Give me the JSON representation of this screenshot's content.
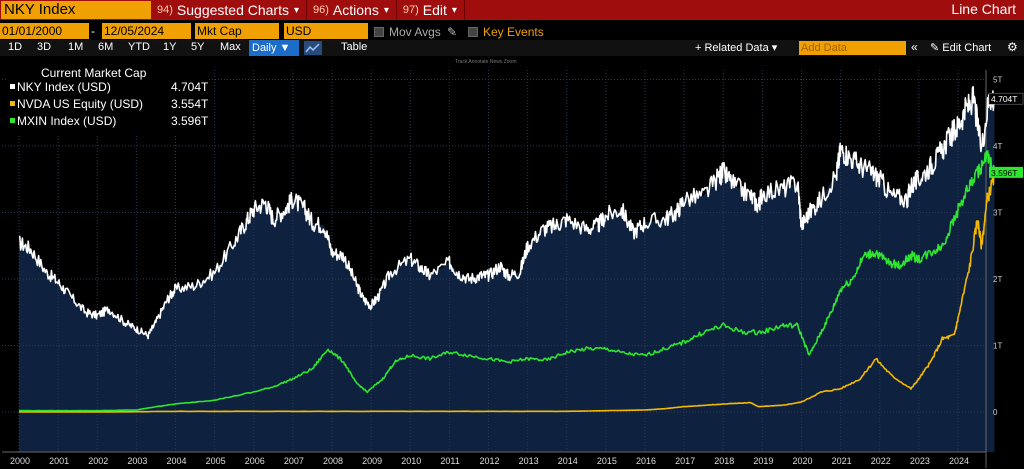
{
  "header": {
    "ticker": "NKY Index",
    "menus": [
      {
        "num": "94)",
        "label": "Suggested Charts"
      },
      {
        "num": "96)",
        "label": "Actions"
      },
      {
        "num": "97)",
        "label": "Edit"
      }
    ],
    "chart_type": "Line Chart"
  },
  "controls": {
    "start_date": "01/01/2000",
    "end_date": "12/05/2024",
    "field": "Mkt Cap",
    "currency": "USD",
    "mov_avgs": "Mov Avgs",
    "key_events": "Key Events",
    "ranges": [
      "1D",
      "3D",
      "1M",
      "6M",
      "YTD",
      "1Y",
      "5Y",
      "Max"
    ],
    "frequency": "Daily",
    "table_label": "Table",
    "related_data": "Related Data",
    "add_data_placeholder": "Add Data",
    "edit_chart": "Edit Chart",
    "annotation_tools": "Track   Annotate   News   Zoom"
  },
  "legend": {
    "title": "Current Market Cap",
    "items": [
      {
        "name": "NKY Index (USD)",
        "value": "4.704T",
        "color": "#ffffff"
      },
      {
        "name": "NVDA US Equity (USD)",
        "value": "3.554T",
        "color": "#f5b800"
      },
      {
        "name": "MXIN Index (USD)",
        "value": "3.596T",
        "color": "#2ee62e"
      }
    ]
  },
  "chart_data": {
    "type": "line",
    "xlabel": "",
    "ylabel": "",
    "x_ticks": [
      "2000",
      "2001",
      "2002",
      "2003",
      "2004",
      "2005",
      "2006",
      "2007",
      "2008",
      "2009",
      "2010",
      "2011",
      "2012",
      "2013",
      "2014",
      "2015",
      "2016",
      "2017",
      "2018",
      "2019",
      "2020",
      "2021",
      "2022",
      "2023",
      "2024"
    ],
    "y_ticks": [
      "0",
      "1T",
      "2T",
      "3T",
      "4T",
      "5T"
    ],
    "ylim": [
      0,
      5.2
    ],
    "grid": true,
    "series": [
      {
        "name": "NKY Index (USD)",
        "color": "#ffffff",
        "fill": true,
        "x": [
          2000.0,
          2000.3,
          2000.7,
          2001.0,
          2001.3,
          2001.7,
          2002.0,
          2002.3,
          2002.7,
          2003.0,
          2003.3,
          2003.5,
          2003.8,
          2004.0,
          2004.5,
          2005.0,
          2005.5,
          2005.8,
          2006.0,
          2006.3,
          2006.5,
          2006.8,
          2007.0,
          2007.3,
          2007.5,
          2007.8,
          2008.0,
          2008.3,
          2008.6,
          2008.8,
          2009.0,
          2009.2,
          2009.5,
          2010.0,
          2010.3,
          2010.5,
          2011.0,
          2011.2,
          2011.5,
          2011.8,
          2012.0,
          2012.3,
          2012.5,
          2012.8,
          2013.0,
          2013.4,
          2013.7,
          2014.0,
          2014.5,
          2014.8,
          2015.0,
          2015.4,
          2015.7,
          2016.0,
          2016.5,
          2016.8,
          2017.0,
          2017.5,
          2017.9,
          2018.0,
          2018.3,
          2018.7,
          2018.9,
          2019.0,
          2019.5,
          2019.9,
          2020.0,
          2020.2,
          2020.5,
          2020.9,
          2021.0,
          2021.2,
          2021.5,
          2021.8,
          2022.0,
          2022.3,
          2022.7,
          2022.8,
          2023.0,
          2023.3,
          2023.5,
          2023.8,
          2024.0,
          2024.2,
          2024.4,
          2024.6,
          2024.8,
          2024.93
        ],
        "y": [
          2.55,
          2.45,
          2.1,
          1.95,
          1.75,
          1.5,
          1.45,
          1.55,
          1.35,
          1.25,
          1.15,
          1.35,
          1.7,
          1.85,
          1.9,
          2.1,
          2.55,
          2.85,
          3.05,
          3.15,
          2.9,
          3.05,
          3.2,
          3.05,
          2.85,
          2.8,
          2.4,
          2.35,
          1.95,
          1.7,
          1.6,
          1.75,
          2.1,
          2.3,
          2.15,
          2.05,
          2.25,
          2.1,
          2.0,
          2.05,
          2.05,
          2.2,
          2.05,
          2.1,
          2.5,
          2.75,
          2.8,
          2.9,
          2.75,
          2.8,
          2.95,
          3.05,
          2.7,
          2.85,
          2.9,
          3.0,
          3.2,
          3.25,
          3.55,
          3.6,
          3.4,
          3.25,
          3.1,
          3.3,
          3.35,
          3.45,
          2.8,
          3.0,
          3.2,
          3.6,
          3.95,
          3.85,
          3.7,
          3.6,
          3.5,
          3.25,
          3.2,
          3.4,
          3.5,
          3.7,
          3.85,
          4.15,
          4.3,
          4.55,
          4.7,
          3.95,
          4.75,
          4.704
        ]
      },
      {
        "name": "NVDA US Equity (USD)",
        "color": "#f5b800",
        "fill": false,
        "x": [
          2000.0,
          2002.0,
          2004.0,
          2006.0,
          2008.0,
          2010.0,
          2012.0,
          2014.0,
          2016.0,
          2016.5,
          2017.0,
          2017.5,
          2018.0,
          2018.7,
          2018.9,
          2019.5,
          2020.0,
          2020.5,
          2021.0,
          2021.5,
          2021.9,
          2022.3,
          2022.8,
          2023.0,
          2023.3,
          2023.6,
          2023.9,
          2024.0,
          2024.3,
          2024.5,
          2024.6,
          2024.75,
          2024.93
        ],
        "y": [
          0.0,
          0.0,
          0.01,
          0.01,
          0.01,
          0.01,
          0.01,
          0.01,
          0.03,
          0.05,
          0.08,
          0.1,
          0.12,
          0.14,
          0.08,
          0.1,
          0.15,
          0.3,
          0.35,
          0.5,
          0.8,
          0.55,
          0.35,
          0.5,
          0.75,
          1.1,
          1.15,
          1.4,
          2.2,
          2.9,
          2.5,
          3.2,
          3.554
        ]
      },
      {
        "name": "MXIN Index (USD)",
        "color": "#2ee62e",
        "fill": false,
        "x": [
          2000.0,
          2001.0,
          2002.0,
          2003.0,
          2003.5,
          2004.0,
          2005.0,
          2006.0,
          2006.5,
          2007.0,
          2007.5,
          2007.9,
          2008.3,
          2008.6,
          2008.9,
          2009.3,
          2009.6,
          2010.0,
          2010.5,
          2011.0,
          2011.5,
          2012.0,
          2012.5,
          2013.0,
          2013.5,
          2014.0,
          2014.5,
          2015.0,
          2015.5,
          2016.0,
          2016.5,
          2017.0,
          2017.5,
          2018.0,
          2018.5,
          2019.0,
          2019.5,
          2019.9,
          2020.2,
          2020.5,
          2020.8,
          2021.0,
          2021.3,
          2021.6,
          2021.9,
          2022.2,
          2022.5,
          2022.8,
          2023.0,
          2023.3,
          2023.6,
          2023.9,
          2024.2,
          2024.5,
          2024.75,
          2024.93
        ],
        "y": [
          0.02,
          0.02,
          0.02,
          0.03,
          0.08,
          0.12,
          0.18,
          0.3,
          0.38,
          0.5,
          0.65,
          0.95,
          0.75,
          0.45,
          0.3,
          0.5,
          0.75,
          0.85,
          0.8,
          0.9,
          0.85,
          0.8,
          0.75,
          0.8,
          0.78,
          0.9,
          0.95,
          0.95,
          0.88,
          0.85,
          0.95,
          1.05,
          1.2,
          1.3,
          1.2,
          1.2,
          1.3,
          1.3,
          0.85,
          1.2,
          1.55,
          1.85,
          2.0,
          2.35,
          2.4,
          2.25,
          2.2,
          2.35,
          2.3,
          2.4,
          2.5,
          2.9,
          3.3,
          3.6,
          3.85,
          3.596
        ]
      }
    ],
    "end_labels": [
      {
        "series": 0,
        "text": "4.704T"
      },
      {
        "series": 2,
        "text": "3.596T"
      }
    ]
  }
}
